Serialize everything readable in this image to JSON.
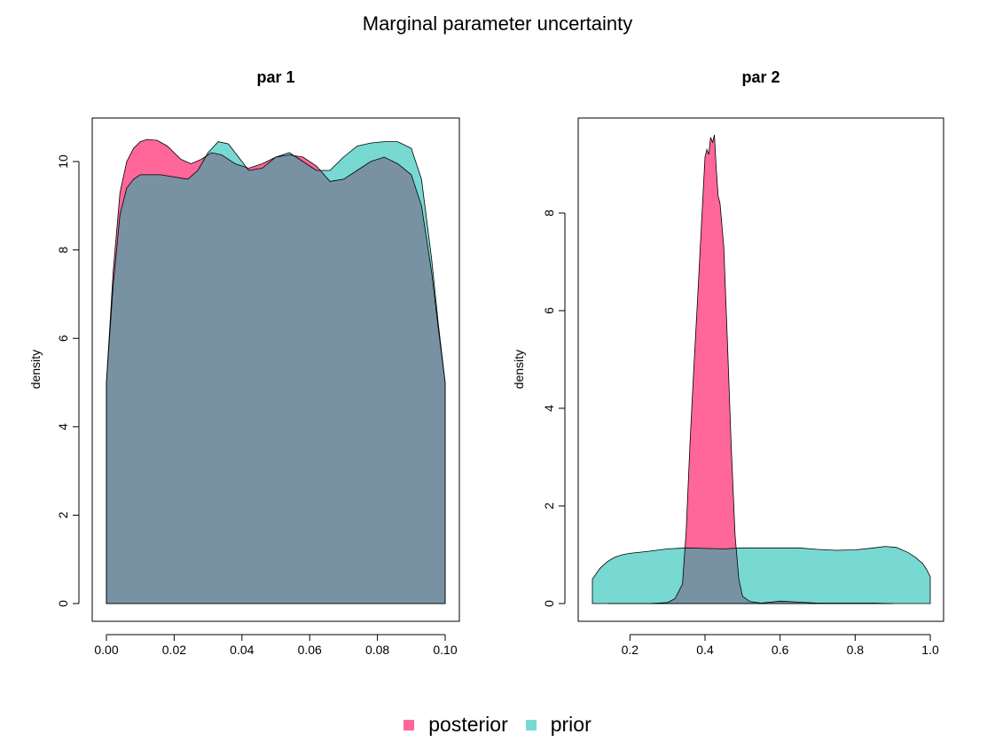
{
  "title": "Marginal parameter uncertainty",
  "colors": {
    "posterior": "#ff6699",
    "prior": "#77d9d2",
    "overlap": "#7892a3"
  },
  "legend": [
    {
      "name": "posterior",
      "color": "#ff6699"
    },
    {
      "name": "prior",
      "color": "#77d9d2"
    }
  ],
  "chart_data": [
    {
      "type": "area",
      "title": "par 1",
      "ylabel": "density",
      "xlim": [
        0.0,
        0.1
      ],
      "ylim": [
        0,
        10.5
      ],
      "xticks": [
        "0.00",
        "0.02",
        "0.04",
        "0.06",
        "0.08",
        "0.10"
      ],
      "yticks": [
        "0",
        "2",
        "4",
        "6",
        "8",
        "10"
      ],
      "series": [
        {
          "name": "posterior",
          "x": [
            0.0,
            0.002,
            0.004,
            0.006,
            0.008,
            0.01,
            0.012,
            0.015,
            0.018,
            0.022,
            0.025,
            0.028,
            0.031,
            0.034,
            0.038,
            0.042,
            0.046,
            0.05,
            0.054,
            0.058,
            0.062,
            0.066,
            0.07,
            0.074,
            0.078,
            0.082,
            0.086,
            0.09,
            0.093,
            0.096,
            0.098,
            0.1
          ],
          "y": [
            5.0,
            7.5,
            9.3,
            10.0,
            10.3,
            10.45,
            10.5,
            10.48,
            10.35,
            10.05,
            9.95,
            10.05,
            10.2,
            10.15,
            9.95,
            9.85,
            9.95,
            10.1,
            10.15,
            10.1,
            9.9,
            9.55,
            9.6,
            9.8,
            10.0,
            10.1,
            9.95,
            9.7,
            9.0,
            7.5,
            6.2,
            5.0
          ]
        },
        {
          "name": "prior",
          "x": [
            0.0,
            0.002,
            0.004,
            0.006,
            0.008,
            0.01,
            0.013,
            0.016,
            0.02,
            0.024,
            0.027,
            0.03,
            0.033,
            0.036,
            0.039,
            0.042,
            0.046,
            0.05,
            0.054,
            0.058,
            0.062,
            0.066,
            0.07,
            0.074,
            0.078,
            0.082,
            0.086,
            0.09,
            0.093,
            0.096,
            0.098,
            0.1
          ],
          "y": [
            5.0,
            7.2,
            8.8,
            9.4,
            9.6,
            9.7,
            9.7,
            9.7,
            9.65,
            9.6,
            9.8,
            10.2,
            10.45,
            10.4,
            10.1,
            9.8,
            9.85,
            10.1,
            10.2,
            10.0,
            9.8,
            9.8,
            10.1,
            10.35,
            10.42,
            10.45,
            10.45,
            10.3,
            9.6,
            7.8,
            6.3,
            5.0
          ]
        }
      ]
    },
    {
      "type": "area",
      "title": "par 2",
      "ylabel": "density",
      "xlim": [
        0.1,
        1.0
      ],
      "ylim": [
        0,
        9.6
      ],
      "xticks": [
        "0.2",
        "0.4",
        "0.6",
        "0.8",
        "1.0"
      ],
      "yticks": [
        "0",
        "2",
        "4",
        "6",
        "8"
      ],
      "series": [
        {
          "name": "posterior",
          "x": [
            0.14,
            0.2,
            0.25,
            0.3,
            0.32,
            0.34,
            0.35,
            0.36,
            0.37,
            0.38,
            0.39,
            0.4,
            0.405,
            0.41,
            0.415,
            0.42,
            0.425,
            0.43,
            0.435,
            0.44,
            0.45,
            0.46,
            0.47,
            0.48,
            0.49,
            0.5,
            0.52,
            0.55,
            0.6,
            0.7,
            0.85,
            0.9
          ],
          "y": [
            0.0,
            0.0,
            0.0,
            0.02,
            0.1,
            0.4,
            1.5,
            3.3,
            4.8,
            6.2,
            7.7,
            9.15,
            9.3,
            9.2,
            9.55,
            9.45,
            9.6,
            8.9,
            8.35,
            8.2,
            7.3,
            5.3,
            3.2,
            1.4,
            0.5,
            0.15,
            0.04,
            0.01,
            0.05,
            0.01,
            0.01,
            0.0
          ]
        },
        {
          "name": "prior",
          "x": [
            0.1,
            0.12,
            0.14,
            0.16,
            0.18,
            0.2,
            0.25,
            0.3,
            0.35,
            0.4,
            0.45,
            0.5,
            0.55,
            0.6,
            0.65,
            0.7,
            0.75,
            0.8,
            0.85,
            0.88,
            0.91,
            0.94,
            0.96,
            0.98,
            0.99,
            1.0
          ],
          "y": [
            0.5,
            0.72,
            0.86,
            0.95,
            1.0,
            1.03,
            1.07,
            1.12,
            1.14,
            1.13,
            1.12,
            1.14,
            1.14,
            1.14,
            1.14,
            1.11,
            1.09,
            1.1,
            1.14,
            1.17,
            1.15,
            1.05,
            0.95,
            0.82,
            0.7,
            0.55
          ]
        }
      ]
    }
  ]
}
